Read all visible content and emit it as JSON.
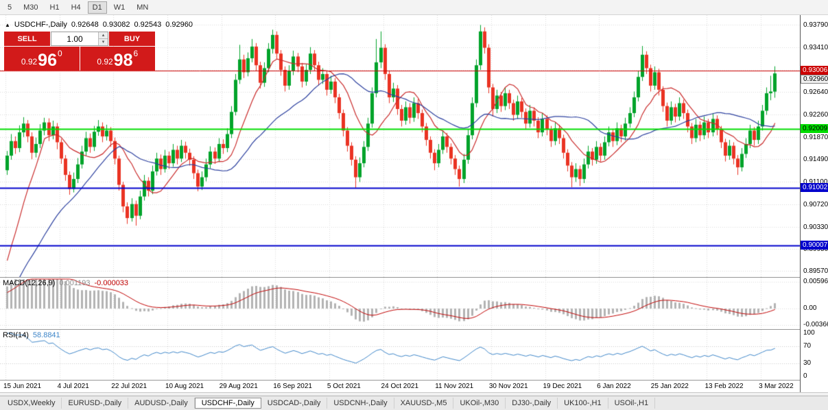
{
  "toolbar": {
    "timeframes": [
      "5",
      "M30",
      "H1",
      "H4",
      "D1",
      "W1",
      "MN"
    ],
    "active": "D1"
  },
  "info_line": {
    "arrow": "▲",
    "symbol": "USDCHF-,Daily",
    "open": "0.92648",
    "high": "0.93082",
    "low": "0.92543",
    "close": "0.92960"
  },
  "trade_panel": {
    "sell_label": "SELL",
    "buy_label": "BUY",
    "lot": "1.00",
    "spinner_up": "▴",
    "spinner_down": "▾",
    "sell_price": {
      "prefix": "0.92",
      "big": "96",
      "sup": "0"
    },
    "buy_price": {
      "prefix": "0.92",
      "big": "98",
      "sup": "6"
    },
    "accent_red": "#d21a1a"
  },
  "macd": {
    "title": "MACD(12,26,9)",
    "main_value": "0.001193",
    "signal_value": "-0.000033"
  },
  "rsi": {
    "title": "RSI(14)",
    "value": "58.8841"
  },
  "tabs": {
    "items": [
      "USDX,Weekly",
      "EURUSD-,Daily",
      "AUDUSD-,Daily",
      "USDCHF-,Daily",
      "USDCAD-,Daily",
      "USDCNH-,Daily",
      "XAUUSD-,M5",
      "UKOil-,M30",
      "DJ30-,Daily",
      "UK100-,H1",
      "USOil-,H1"
    ],
    "active_index": 3
  },
  "chart_data": {
    "type": "candlestick",
    "title": "USDCHF-,Daily",
    "up_color": "#00a32a",
    "down_color": "#ea3323",
    "price_range": {
      "top": 0.9396,
      "bottom": 0.8947
    },
    "price_axis_labels": [
      "0.93790",
      "0.93410",
      "0.93020",
      "0.92640",
      "0.92260",
      "0.91870",
      "0.91490",
      "0.91100",
      "0.90720",
      "0.90330",
      "0.89950",
      "0.89570"
    ],
    "x_tick_labels": [
      "15 Jun 2021",
      "4 Jul 2021",
      "22 Jul 2021",
      "10 Aug 2021",
      "29 Aug 2021",
      "16 Sep 2021",
      "5 Oct 2021",
      "24 Oct 2021",
      "11 Nov 2021",
      "30 Nov 2021",
      "19 Dec 2021",
      "6 Jan 2022",
      "25 Jan 2022",
      "13 Feb 2022",
      "3 Mar 2022"
    ],
    "candles_per_tick": 13,
    "current_price": {
      "label": "0.92960",
      "value": 0.9296
    },
    "hlines": [
      {
        "value": 0.93006,
        "label": "0.93006",
        "color": "#cc0000",
        "width": 1,
        "label_bg": "#cc0000",
        "label_fg": "#ffffff"
      },
      {
        "value": 0.92009,
        "label": "0.92009",
        "color": "#00dd00",
        "width": 2,
        "label_bg": "#00dd00",
        "label_fg": "#000000"
      },
      {
        "value": 0.91002,
        "label": "0.91002",
        "color": "#0000cc",
        "width": 2,
        "label_bg": "#0000cc",
        "label_fg": "#ffffff"
      },
      {
        "value": 0.90007,
        "label": "0.90007",
        "color": "#0000cc",
        "width": 2,
        "label_bg": "#0000cc",
        "label_fg": "#ffffff"
      }
    ],
    "ma_fast": {
      "period": 10,
      "color": "#c92a2a"
    },
    "ma_slow": {
      "period": 28,
      "color": "#2b3f9e"
    },
    "pre_ramp": {
      "from": 0.88,
      "to": 0.898,
      "bars": 30
    },
    "macd_pane": {
      "fast": 12,
      "slow": 26,
      "signal": 9,
      "max": 0.00596,
      "min": -0.00366,
      "hist_color": "#b3b3b3",
      "signal_color": "#c00000",
      "axis_labels": [
        {
          "text": "0.00596",
          "v": 0.00596
        },
        {
          "text": "0.00",
          "v": 0
        },
        {
          "text": "-0.00366",
          "v": -0.00366
        }
      ]
    },
    "rsi_pane": {
      "period": 14,
      "color": "#3d85c8",
      "levels": [
        70,
        30
      ],
      "axis_labels": [
        {
          "text": "100",
          "v": 100
        },
        {
          "text": "70",
          "v": 70
        },
        {
          "text": "30",
          "v": 30
        },
        {
          "text": "0",
          "v": 0
        }
      ]
    },
    "candles": [
      [
        0.913,
        0.9163,
        0.9122,
        0.9155
      ],
      [
        0.9155,
        0.9192,
        0.9148,
        0.918
      ],
      [
        0.918,
        0.9188,
        0.9158,
        0.9168
      ],
      [
        0.9168,
        0.9207,
        0.9161,
        0.9195
      ],
      [
        0.9195,
        0.9221,
        0.9187,
        0.921
      ],
      [
        0.921,
        0.9216,
        0.9178,
        0.9188
      ],
      [
        0.9188,
        0.9195,
        0.9149,
        0.916
      ],
      [
        0.916,
        0.9186,
        0.9152,
        0.9175
      ],
      [
        0.9175,
        0.9209,
        0.9168,
        0.9198
      ],
      [
        0.9198,
        0.922,
        0.919,
        0.9212
      ],
      [
        0.9212,
        0.9219,
        0.918,
        0.919
      ],
      [
        0.919,
        0.9215,
        0.9183,
        0.9205
      ],
      [
        0.9205,
        0.9211,
        0.9166,
        0.9178
      ],
      [
        0.9178,
        0.9184,
        0.9141,
        0.915
      ],
      [
        0.915,
        0.9156,
        0.9112,
        0.9122
      ],
      [
        0.9122,
        0.9128,
        0.9088,
        0.9098
      ],
      [
        0.9098,
        0.9126,
        0.9092,
        0.9115
      ],
      [
        0.9115,
        0.9151,
        0.9108,
        0.914
      ],
      [
        0.914,
        0.9172,
        0.9133,
        0.9162
      ],
      [
        0.9162,
        0.9196,
        0.9155,
        0.9185
      ],
      [
        0.9185,
        0.9193,
        0.916,
        0.917
      ],
      [
        0.917,
        0.9206,
        0.9163,
        0.9196
      ],
      [
        0.9196,
        0.9216,
        0.9189,
        0.9205
      ],
      [
        0.9205,
        0.9212,
        0.9178,
        0.9188
      ],
      [
        0.9188,
        0.9208,
        0.9181,
        0.9198
      ],
      [
        0.9198,
        0.9204,
        0.917,
        0.918
      ],
      [
        0.918,
        0.9186,
        0.914,
        0.915
      ],
      [
        0.915,
        0.9155,
        0.9095,
        0.9105
      ],
      [
        0.9105,
        0.911,
        0.9058,
        0.9068
      ],
      [
        0.9068,
        0.9075,
        0.9038,
        0.9048
      ],
      [
        0.9048,
        0.9082,
        0.9042,
        0.9072
      ],
      [
        0.9072,
        0.9078,
        0.9035,
        0.9052
      ],
      [
        0.9052,
        0.9095,
        0.9046,
        0.9085
      ],
      [
        0.9085,
        0.9122,
        0.9078,
        0.9112
      ],
      [
        0.9112,
        0.9118,
        0.9085,
        0.9095
      ],
      [
        0.9095,
        0.9138,
        0.9089,
        0.9128
      ],
      [
        0.9128,
        0.916,
        0.9121,
        0.915
      ],
      [
        0.915,
        0.9157,
        0.9122,
        0.9132
      ],
      [
        0.9132,
        0.9165,
        0.9126,
        0.9155
      ],
      [
        0.9155,
        0.9162,
        0.9132,
        0.9142
      ],
      [
        0.9142,
        0.9175,
        0.9136,
        0.9165
      ],
      [
        0.9165,
        0.9172,
        0.914,
        0.915
      ],
      [
        0.915,
        0.9182,
        0.9144,
        0.9172
      ],
      [
        0.9172,
        0.9179,
        0.915,
        0.916
      ],
      [
        0.916,
        0.9167,
        0.9138,
        0.9148
      ],
      [
        0.9148,
        0.9154,
        0.9115,
        0.9125
      ],
      [
        0.9125,
        0.9131,
        0.9094,
        0.9102
      ],
      [
        0.9102,
        0.9128,
        0.9096,
        0.9118
      ],
      [
        0.9118,
        0.915,
        0.9111,
        0.914
      ],
      [
        0.914,
        0.9171,
        0.9133,
        0.9162
      ],
      [
        0.9162,
        0.9169,
        0.9141,
        0.915
      ],
      [
        0.915,
        0.9185,
        0.9144,
        0.9175
      ],
      [
        0.9175,
        0.9183,
        0.9158,
        0.9168
      ],
      [
        0.9168,
        0.9202,
        0.9161,
        0.9192
      ],
      [
        0.9192,
        0.924,
        0.9185,
        0.923
      ],
      [
        0.923,
        0.9295,
        0.9224,
        0.9285
      ],
      [
        0.9285,
        0.9345,
        0.9278,
        0.932
      ],
      [
        0.932,
        0.9328,
        0.9288,
        0.9298
      ],
      [
        0.9298,
        0.9332,
        0.9291,
        0.9322
      ],
      [
        0.9322,
        0.9355,
        0.9315,
        0.9342
      ],
      [
        0.9342,
        0.9348,
        0.93,
        0.931
      ],
      [
        0.931,
        0.9316,
        0.927,
        0.928
      ],
      [
        0.928,
        0.9315,
        0.9273,
        0.9305
      ],
      [
        0.9305,
        0.9348,
        0.9298,
        0.9338
      ],
      [
        0.9338,
        0.9371,
        0.933,
        0.9362
      ],
      [
        0.9362,
        0.9368,
        0.932,
        0.933
      ],
      [
        0.933,
        0.9336,
        0.9292,
        0.9302
      ],
      [
        0.9302,
        0.9308,
        0.9265,
        0.9275
      ],
      [
        0.9275,
        0.931,
        0.9268,
        0.93
      ],
      [
        0.93,
        0.9335,
        0.9293,
        0.9325
      ],
      [
        0.9325,
        0.9331,
        0.9298,
        0.9308
      ],
      [
        0.9308,
        0.9314,
        0.9272,
        0.9282
      ],
      [
        0.9282,
        0.9312,
        0.9275,
        0.9302
      ],
      [
        0.9302,
        0.9341,
        0.9295,
        0.933
      ],
      [
        0.933,
        0.9336,
        0.93,
        0.931
      ],
      [
        0.931,
        0.9316,
        0.9275,
        0.9285
      ],
      [
        0.9285,
        0.9305,
        0.9278,
        0.9295
      ],
      [
        0.9295,
        0.9301,
        0.9258,
        0.9268
      ],
      [
        0.9268,
        0.9292,
        0.9261,
        0.9282
      ],
      [
        0.9282,
        0.9288,
        0.9245,
        0.9255
      ],
      [
        0.9255,
        0.9261,
        0.9218,
        0.9228
      ],
      [
        0.9228,
        0.9234,
        0.9188,
        0.9198
      ],
      [
        0.9198,
        0.9204,
        0.9162,
        0.9172
      ],
      [
        0.9172,
        0.9178,
        0.9138,
        0.9148
      ],
      [
        0.9148,
        0.9154,
        0.91,
        0.9118
      ],
      [
        0.9118,
        0.9152,
        0.911,
        0.9142
      ],
      [
        0.9142,
        0.918,
        0.9135,
        0.917
      ],
      [
        0.917,
        0.922,
        0.9163,
        0.921
      ],
      [
        0.921,
        0.9272,
        0.9203,
        0.9262
      ],
      [
        0.9262,
        0.9355,
        0.9255,
        0.9315
      ],
      [
        0.9315,
        0.9368,
        0.9305,
        0.934
      ],
      [
        0.934,
        0.9346,
        0.9285,
        0.9295
      ],
      [
        0.9295,
        0.9301,
        0.9245,
        0.9255
      ],
      [
        0.9255,
        0.928,
        0.9247,
        0.927
      ],
      [
        0.927,
        0.9276,
        0.9225,
        0.9235
      ],
      [
        0.9235,
        0.9242,
        0.9205,
        0.9215
      ],
      [
        0.9215,
        0.9248,
        0.9208,
        0.9238
      ],
      [
        0.9238,
        0.9245,
        0.921,
        0.922
      ],
      [
        0.922,
        0.9255,
        0.9213,
        0.9245
      ],
      [
        0.9245,
        0.9252,
        0.9218,
        0.9228
      ],
      [
        0.9228,
        0.9234,
        0.9195,
        0.9205
      ],
      [
        0.9205,
        0.9211,
        0.9172,
        0.9182
      ],
      [
        0.9182,
        0.9188,
        0.915,
        0.916
      ],
      [
        0.916,
        0.9166,
        0.913,
        0.9142
      ],
      [
        0.9142,
        0.9175,
        0.9135,
        0.9165
      ],
      [
        0.9165,
        0.9198,
        0.9158,
        0.9188
      ],
      [
        0.9188,
        0.9194,
        0.916,
        0.917
      ],
      [
        0.917,
        0.9176,
        0.914,
        0.915
      ],
      [
        0.915,
        0.9156,
        0.9122,
        0.9132
      ],
      [
        0.9132,
        0.9138,
        0.9102,
        0.9115
      ],
      [
        0.9115,
        0.9158,
        0.9108,
        0.9148
      ],
      [
        0.9148,
        0.92,
        0.9141,
        0.919
      ],
      [
        0.919,
        0.9255,
        0.9183,
        0.9245
      ],
      [
        0.9245,
        0.932,
        0.9238,
        0.931
      ],
      [
        0.931,
        0.9379,
        0.9302,
        0.9368
      ],
      [
        0.9368,
        0.9375,
        0.933,
        0.934
      ],
      [
        0.934,
        0.9346,
        0.9262,
        0.9272
      ],
      [
        0.9272,
        0.9278,
        0.9222,
        0.9235
      ],
      [
        0.9235,
        0.9268,
        0.9228,
        0.9258
      ],
      [
        0.9258,
        0.9264,
        0.923,
        0.924
      ],
      [
        0.924,
        0.9272,
        0.9233,
        0.9262
      ],
      [
        0.9262,
        0.9268,
        0.9235,
        0.9245
      ],
      [
        0.9245,
        0.9251,
        0.9215,
        0.9225
      ],
      [
        0.9225,
        0.9258,
        0.9218,
        0.9248
      ],
      [
        0.9248,
        0.9254,
        0.922,
        0.923
      ],
      [
        0.923,
        0.9236,
        0.92,
        0.921
      ],
      [
        0.921,
        0.9242,
        0.9203,
        0.9232
      ],
      [
        0.9232,
        0.9238,
        0.9205,
        0.9215
      ],
      [
        0.9215,
        0.9221,
        0.9185,
        0.9195
      ],
      [
        0.9195,
        0.9228,
        0.9188,
        0.9218
      ],
      [
        0.9218,
        0.9224,
        0.919,
        0.92
      ],
      [
        0.92,
        0.9206,
        0.917,
        0.918
      ],
      [
        0.918,
        0.9212,
        0.9173,
        0.9202
      ],
      [
        0.9202,
        0.9208,
        0.9175,
        0.9185
      ],
      [
        0.9185,
        0.9191,
        0.915,
        0.916
      ],
      [
        0.916,
        0.9166,
        0.9128,
        0.9138
      ],
      [
        0.9138,
        0.9144,
        0.9101,
        0.9118
      ],
      [
        0.9118,
        0.9142,
        0.911,
        0.9132
      ],
      [
        0.9132,
        0.9138,
        0.9103,
        0.9115
      ],
      [
        0.9115,
        0.915,
        0.9108,
        0.914
      ],
      [
        0.914,
        0.9172,
        0.9133,
        0.9162
      ],
      [
        0.9162,
        0.9168,
        0.9138,
        0.9148
      ],
      [
        0.9148,
        0.918,
        0.9141,
        0.917
      ],
      [
        0.917,
        0.9176,
        0.9145,
        0.9155
      ],
      [
        0.9155,
        0.9188,
        0.9148,
        0.9178
      ],
      [
        0.9178,
        0.9205,
        0.9171,
        0.9195
      ],
      [
        0.9195,
        0.9201,
        0.917,
        0.918
      ],
      [
        0.918,
        0.9212,
        0.9173,
        0.9202
      ],
      [
        0.9202,
        0.9208,
        0.9178,
        0.9188
      ],
      [
        0.9188,
        0.922,
        0.9181,
        0.921
      ],
      [
        0.921,
        0.9238,
        0.9203,
        0.9228
      ],
      [
        0.9228,
        0.9265,
        0.9221,
        0.9255
      ],
      [
        0.9255,
        0.93,
        0.9248,
        0.929
      ],
      [
        0.929,
        0.9343,
        0.9283,
        0.9328
      ],
      [
        0.9328,
        0.9334,
        0.9295,
        0.9305
      ],
      [
        0.9305,
        0.9311,
        0.9265,
        0.9275
      ],
      [
        0.9275,
        0.9308,
        0.9268,
        0.9298
      ],
      [
        0.9298,
        0.9304,
        0.9258,
        0.9268
      ],
      [
        0.9268,
        0.9274,
        0.923,
        0.924
      ],
      [
        0.924,
        0.9246,
        0.9205,
        0.9215
      ],
      [
        0.9215,
        0.9248,
        0.9208,
        0.9238
      ],
      [
        0.9238,
        0.9244,
        0.9212,
        0.9222
      ],
      [
        0.9222,
        0.9255,
        0.9215,
        0.9245
      ],
      [
        0.9245,
        0.9251,
        0.9218,
        0.9228
      ],
      [
        0.9228,
        0.9234,
        0.9195,
        0.9205
      ],
      [
        0.9205,
        0.9211,
        0.9175,
        0.9185
      ],
      [
        0.9185,
        0.9218,
        0.9178,
        0.9208
      ],
      [
        0.9208,
        0.9214,
        0.918,
        0.919
      ],
      [
        0.919,
        0.9222,
        0.9183,
        0.9212
      ],
      [
        0.9212,
        0.9218,
        0.9185,
        0.9195
      ],
      [
        0.9195,
        0.9228,
        0.9188,
        0.9218
      ],
      [
        0.9218,
        0.9224,
        0.919,
        0.92
      ],
      [
        0.92,
        0.9206,
        0.9168,
        0.9178
      ],
      [
        0.9178,
        0.9184,
        0.9145,
        0.9155
      ],
      [
        0.9155,
        0.9182,
        0.9148,
        0.9172
      ],
      [
        0.9172,
        0.9178,
        0.914,
        0.915
      ],
      [
        0.915,
        0.9156,
        0.9122,
        0.9135
      ],
      [
        0.9135,
        0.9168,
        0.9128,
        0.9158
      ],
      [
        0.9158,
        0.9185,
        0.9151,
        0.9175
      ],
      [
        0.9175,
        0.9208,
        0.9168,
        0.9198
      ],
      [
        0.9198,
        0.9204,
        0.9172,
        0.9182
      ],
      [
        0.9182,
        0.9215,
        0.9175,
        0.9205
      ],
      [
        0.9205,
        0.9242,
        0.9198,
        0.9232
      ],
      [
        0.9232,
        0.9272,
        0.9225,
        0.9262
      ],
      [
        0.9262,
        0.9292,
        0.925,
        0.9265
      ],
      [
        0.92648,
        0.93082,
        0.92543,
        0.9296
      ]
    ]
  }
}
